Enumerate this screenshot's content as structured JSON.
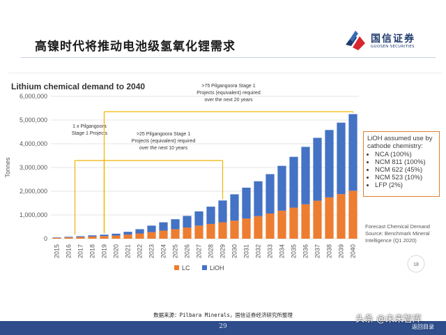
{
  "slide": {
    "title": "高镍时代将推动电池级氢氧化锂需求",
    "brand_name": "国信证券",
    "brand_sub": "GUOSEN SECURITIES",
    "footnote": "数据来源：Pilbara Minerals，国信证券经济研究所整理",
    "page_number": "29",
    "watermark": "头条 @未来智库",
    "back_link": "返回目录",
    "colors": {
      "nav_bar": "#2e4d8a",
      "brand_blue": "#1e3a6e",
      "brand_red": "#d7262e"
    }
  },
  "chart_data": {
    "type": "bar",
    "stacked": true,
    "title": "Lithium chemical demand to 2040",
    "ylabel": "Tonnes",
    "xlabel": "",
    "ylim": [
      0,
      6000000
    ],
    "yticks": [
      0,
      1000000,
      2000000,
      3000000,
      4000000,
      5000000,
      6000000
    ],
    "ytick_labels": [
      "0",
      "1,000,000",
      "2,000,000",
      "3,000,000",
      "4,000,000",
      "5,000,000",
      "6,000,000"
    ],
    "grid": true,
    "legend_position": "bottom",
    "categories": [
      "2015",
      "2016",
      "2017",
      "2018",
      "2019",
      "2020",
      "2021",
      "2022",
      "2023",
      "2024",
      "2025",
      "2026",
      "2027",
      "2028",
      "2029",
      "2030",
      "2031",
      "2032",
      "2033",
      "2034",
      "2035",
      "2036",
      "2037",
      "2038",
      "2039",
      "2040"
    ],
    "series": [
      {
        "name": "LC",
        "color": "#ed7d31",
        "values": [
          40000,
          55000,
          70000,
          90000,
          110000,
          130000,
          170000,
          220000,
          280000,
          340000,
          400000,
          470000,
          550000,
          620000,
          690000,
          760000,
          850000,
          950000,
          1060000,
          1180000,
          1310000,
          1450000,
          1600000,
          1740000,
          1880000,
          2020000
        ]
      },
      {
        "name": "LiOH",
        "color": "#4472c4",
        "values": [
          15000,
          25000,
          35000,
          50000,
          60000,
          80000,
          120000,
          180000,
          270000,
          350000,
          420000,
          490000,
          600000,
          730000,
          920000,
          1110000,
          1300000,
          1470000,
          1660000,
          1890000,
          2140000,
          2420000,
          2650000,
          2840000,
          3010000,
          3230000
        ]
      }
    ],
    "annotations": [
      {
        "label": "1 x Pilgangoora\nStage 1 Projects",
        "from": "2017",
        "to": "2019"
      },
      {
        "label": ">25 Pilgangoora Stage 1\nProjects (equivalent) required\nover the next 10 years",
        "from": "2019",
        "to": "2029"
      },
      {
        "label": ">75 Pilgangoora Stage 1\nProjects (equivalent) required\nover the next 20 years",
        "from": "2019",
        "to": "2040"
      }
    ],
    "legend_note": {
      "title": "LiOH assumed use by cathode chemistry:",
      "items": [
        "NCA (100%)",
        "NCM 811 (100%)",
        "NCM 622 (45%)",
        "NCM 523 (10%)",
        "LFP (2%)"
      ]
    },
    "source_note": "Forecast Chemical Demand Source: Benchmark Mineral Intelligence (Q1 2020)",
    "slide_number": "18"
  }
}
